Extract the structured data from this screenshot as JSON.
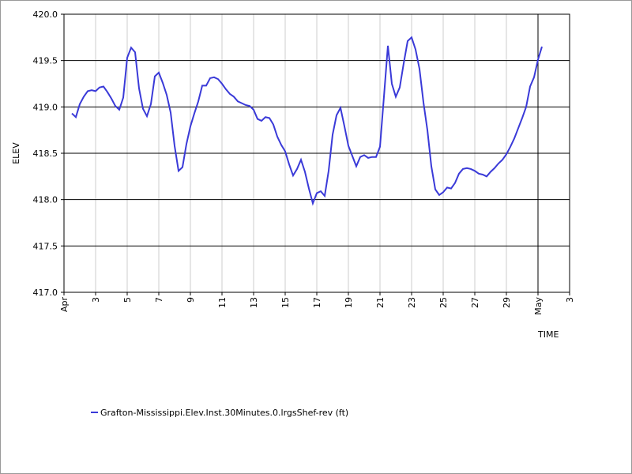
{
  "chart_data": {
    "type": "line",
    "x_label": "TIME",
    "y_label": "ELEV",
    "x": [
      1.5,
      1.75,
      2,
      2.25,
      2.5,
      2.75,
      3,
      3.25,
      3.5,
      3.75,
      4,
      4.25,
      4.5,
      4.75,
      5,
      5.25,
      5.5,
      5.75,
      6,
      6.25,
      6.5,
      6.75,
      7,
      7.25,
      7.5,
      7.75,
      8,
      8.25,
      8.5,
      8.75,
      9,
      9.25,
      9.5,
      9.75,
      10,
      10.25,
      10.5,
      10.75,
      11,
      11.25,
      11.5,
      11.75,
      12,
      12.25,
      12.5,
      12.75,
      13,
      13.25,
      13.5,
      13.75,
      14,
      14.25,
      14.5,
      14.75,
      15,
      15.25,
      15.5,
      15.75,
      16,
      16.25,
      16.5,
      16.75,
      17,
      17.25,
      17.5,
      17.75,
      18,
      18.25,
      18.5,
      18.75,
      19,
      19.25,
      19.5,
      19.75,
      20,
      20.25,
      20.5,
      20.75,
      21,
      21.25,
      21.5,
      21.75,
      22,
      22.25,
      22.5,
      22.75,
      23,
      23.25,
      23.5,
      23.75,
      24,
      24.25,
      24.5,
      24.75,
      25,
      25.25,
      25.5,
      25.75,
      26,
      26.25,
      26.5,
      26.75,
      27,
      27.25,
      27.5,
      27.75,
      28,
      28.25,
      28.5,
      28.75,
      29,
      29.25,
      29.5,
      29.75,
      30,
      30.25,
      30.5,
      30.75,
      31,
      31.25
    ],
    "series": [
      {
        "name": "Grafton-Mississippi.Elev.Inst.30Minutes.0.lrgsShef-rev (ft)",
        "color": "#3a3ad8",
        "values": [
          418.93,
          418.89,
          419.03,
          419.11,
          419.17,
          419.18,
          419.17,
          419.21,
          419.22,
          419.16,
          419.09,
          419.01,
          418.97,
          419.1,
          419.53,
          419.64,
          419.59,
          419.2,
          418.98,
          418.9,
          419.03,
          419.33,
          419.37,
          419.26,
          419.13,
          418.94,
          418.58,
          418.31,
          418.35,
          418.6,
          418.79,
          418.93,
          419.06,
          419.23,
          419.23,
          419.31,
          419.32,
          419.3,
          419.25,
          419.19,
          419.14,
          419.11,
          419.06,
          419.04,
          419.02,
          419.01,
          418.97,
          418.87,
          418.85,
          418.89,
          418.88,
          418.81,
          418.68,
          418.59,
          418.52,
          418.38,
          418.26,
          418.33,
          418.43,
          418.3,
          418.12,
          417.96,
          418.07,
          418.09,
          418.04,
          418.31,
          418.7,
          418.91,
          418.99,
          418.79,
          418.58,
          418.47,
          418.36,
          418.46,
          418.48,
          418.45,
          418.46,
          418.46,
          418.57,
          419.11,
          419.66,
          419.25,
          419.11,
          419.21,
          419.47,
          419.71,
          419.75,
          419.62,
          419.41,
          419.05,
          418.75,
          418.36,
          418.11,
          418.05,
          418.08,
          418.13,
          418.12,
          418.18,
          418.28,
          418.33,
          418.34,
          418.33,
          418.31,
          418.28,
          418.27,
          418.25,
          418.3,
          418.34,
          418.39,
          418.43,
          418.49,
          418.57,
          418.66,
          418.77,
          418.88,
          419.0,
          419.22,
          419.32,
          419.51,
          419.65
        ]
      }
    ],
    "xlim": [
      1,
      33
    ],
    "xticks": [
      {
        "value": 1,
        "label": "Apr"
      },
      3,
      5,
      7,
      9,
      11,
      13,
      15,
      17,
      19,
      21,
      23,
      25,
      27,
      29,
      {
        "value": 31,
        "label": "May"
      },
      {
        "value": 33,
        "label": "3"
      }
    ],
    "ylim": [
      417,
      420
    ],
    "yticks": [
      {
        "value": 417,
        "label": "417.0"
      },
      417.5,
      {
        "value": 418,
        "label": "418.0"
      },
      418.5,
      {
        "value": 419,
        "label": "419.0"
      },
      419.5,
      {
        "value": 420,
        "label": "420.0"
      }
    ],
    "grid": true
  }
}
